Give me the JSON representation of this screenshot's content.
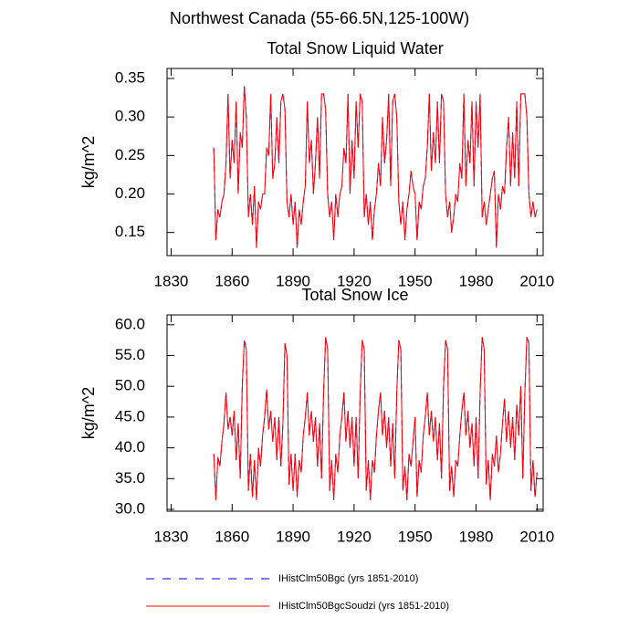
{
  "supertitle": "Northwest Canada (55-66.5N,125-100W)",
  "chart_data": [
    {
      "type": "line",
      "title": "Total Snow Liquid Water",
      "ylabel": "kg/m^2",
      "x": [
        1851,
        1852,
        1853,
        1854,
        1855,
        1856,
        1857,
        1858,
        1859,
        1860,
        1861,
        1862,
        1863,
        1864,
        1865,
        1866,
        1867,
        1868,
        1869,
        1870,
        1871,
        1872,
        1873,
        1874,
        1875,
        1876,
        1877,
        1878,
        1879,
        1880,
        1881,
        1882,
        1883,
        1884,
        1885,
        1886,
        1887,
        1888,
        1889,
        1890,
        1891,
        1892,
        1893,
        1894,
        1895,
        1896,
        1897,
        1898,
        1899,
        1900,
        1901,
        1902,
        1903,
        1904,
        1905,
        1906,
        1907,
        1908,
        1909,
        1910,
        1911,
        1912,
        1913,
        1914,
        1915,
        1916,
        1917,
        1918,
        1919,
        1920,
        1921,
        1922,
        1923,
        1924,
        1925,
        1926,
        1927,
        1928,
        1929,
        1930,
        1931,
        1932,
        1933,
        1934,
        1935,
        1936,
        1937,
        1938,
        1939,
        1940,
        1941,
        1942,
        1943,
        1944,
        1945,
        1946,
        1947,
        1948,
        1949,
        1950,
        1951,
        1952,
        1953,
        1954,
        1955,
        1956,
        1957,
        1958,
        1959,
        1960,
        1961,
        1962,
        1963,
        1964,
        1965,
        1966,
        1967,
        1968,
        1969,
        1970,
        1971,
        1972,
        1973,
        1974,
        1975,
        1976,
        1977,
        1978,
        1979,
        1980,
        1981,
        1982,
        1983,
        1984,
        1985,
        1986,
        1987,
        1988,
        1989,
        1990,
        1991,
        1992,
        1993,
        1994,
        1995,
        1996,
        1997,
        1998,
        1999,
        2000,
        2001,
        2002,
        2003,
        2004,
        2005,
        2006,
        2007,
        2008,
        2009,
        2010
      ],
      "series": [
        {
          "name": "IHistClm50Bgc (yrs 1851-2010)",
          "color": "#0000ff",
          "dashed": true,
          "values": [
            0.26,
            0.14,
            0.18,
            0.17,
            0.19,
            0.2,
            0.24,
            0.33,
            0.22,
            0.27,
            0.24,
            0.32,
            0.2,
            0.28,
            0.26,
            0.34,
            0.3,
            0.17,
            0.2,
            0.16,
            0.21,
            0.13,
            0.19,
            0.18,
            0.2,
            0.2,
            0.26,
            0.25,
            0.33,
            0.22,
            0.24,
            0.3,
            0.24,
            0.32,
            0.33,
            0.31,
            0.19,
            0.17,
            0.2,
            0.16,
            0.19,
            0.13,
            0.18,
            0.16,
            0.19,
            0.21,
            0.32,
            0.24,
            0.27,
            0.2,
            0.24,
            0.3,
            0.22,
            0.33,
            0.33,
            0.31,
            0.2,
            0.17,
            0.19,
            0.14,
            0.2,
            0.17,
            0.2,
            0.21,
            0.26,
            0.24,
            0.33,
            0.2,
            0.27,
            0.22,
            0.32,
            0.26,
            0.33,
            0.32,
            0.17,
            0.2,
            0.16,
            0.19,
            0.14,
            0.18,
            0.2,
            0.24,
            0.21,
            0.3,
            0.24,
            0.27,
            0.33,
            0.21,
            0.32,
            0.33,
            0.3,
            0.19,
            0.16,
            0.19,
            0.14,
            0.18,
            0.2,
            0.23,
            0.21,
            0.2,
            0.14,
            0.19,
            0.18,
            0.21,
            0.22,
            0.26,
            0.33,
            0.23,
            0.28,
            0.24,
            0.32,
            0.24,
            0.33,
            0.32,
            0.2,
            0.17,
            0.19,
            0.15,
            0.17,
            0.2,
            0.19,
            0.24,
            0.22,
            0.33,
            0.21,
            0.27,
            0.24,
            0.32,
            0.21,
            0.32,
            0.26,
            0.33,
            0.17,
            0.19,
            0.16,
            0.18,
            0.2,
            0.22,
            0.23,
            0.13,
            0.2,
            0.18,
            0.21,
            0.2,
            0.26,
            0.3,
            0.21,
            0.28,
            0.22,
            0.32,
            0.21,
            0.33,
            0.33,
            0.33,
            0.3,
            0.2,
            0.17,
            0.19,
            0.17,
            0.18
          ]
        },
        {
          "name": "IHistClm50BgcSoudzi (yrs 1851-2010)",
          "color": "#ff0000",
          "dashed": false,
          "values": [
            0.26,
            0.14,
            0.18,
            0.17,
            0.19,
            0.2,
            0.24,
            0.33,
            0.22,
            0.27,
            0.24,
            0.32,
            0.2,
            0.28,
            0.26,
            0.34,
            0.3,
            0.17,
            0.2,
            0.16,
            0.21,
            0.13,
            0.19,
            0.18,
            0.2,
            0.2,
            0.26,
            0.25,
            0.33,
            0.22,
            0.24,
            0.3,
            0.24,
            0.32,
            0.33,
            0.31,
            0.19,
            0.17,
            0.2,
            0.16,
            0.19,
            0.13,
            0.18,
            0.16,
            0.19,
            0.21,
            0.32,
            0.24,
            0.27,
            0.2,
            0.24,
            0.3,
            0.22,
            0.33,
            0.33,
            0.31,
            0.2,
            0.17,
            0.19,
            0.14,
            0.2,
            0.17,
            0.2,
            0.21,
            0.26,
            0.24,
            0.33,
            0.2,
            0.27,
            0.22,
            0.32,
            0.26,
            0.33,
            0.32,
            0.17,
            0.2,
            0.16,
            0.19,
            0.14,
            0.18,
            0.2,
            0.24,
            0.21,
            0.3,
            0.24,
            0.27,
            0.33,
            0.21,
            0.32,
            0.33,
            0.3,
            0.19,
            0.16,
            0.19,
            0.14,
            0.18,
            0.2,
            0.23,
            0.21,
            0.2,
            0.14,
            0.19,
            0.18,
            0.21,
            0.22,
            0.26,
            0.33,
            0.23,
            0.28,
            0.24,
            0.32,
            0.24,
            0.33,
            0.32,
            0.2,
            0.17,
            0.19,
            0.15,
            0.17,
            0.2,
            0.19,
            0.24,
            0.22,
            0.33,
            0.21,
            0.27,
            0.24,
            0.32,
            0.21,
            0.32,
            0.26,
            0.33,
            0.17,
            0.19,
            0.16,
            0.18,
            0.2,
            0.22,
            0.23,
            0.13,
            0.2,
            0.18,
            0.21,
            0.2,
            0.26,
            0.3,
            0.21,
            0.28,
            0.22,
            0.32,
            0.21,
            0.33,
            0.33,
            0.33,
            0.3,
            0.2,
            0.17,
            0.19,
            0.17,
            0.18
          ]
        }
      ],
      "xlim": [
        1828,
        2013
      ],
      "xticks": [
        1830,
        1860,
        1890,
        1920,
        1950,
        1980,
        2010
      ],
      "ylim": [
        0.12,
        0.363
      ],
      "yticks": [
        0.15,
        {
          "value": 0.2,
          "label": "0.20"
        },
        0.25,
        {
          "value": 0.3,
          "label": "0.30"
        },
        0.35
      ]
    },
    {
      "type": "line",
      "title": "Total Snow Ice",
      "ylabel": "kg/m^2",
      "x": [
        1851,
        1852,
        1853,
        1854,
        1855,
        1856,
        1857,
        1858,
        1859,
        1860,
        1861,
        1862,
        1863,
        1864,
        1865,
        1866,
        1867,
        1868,
        1869,
        1870,
        1871,
        1872,
        1873,
        1874,
        1875,
        1876,
        1877,
        1878,
        1879,
        1880,
        1881,
        1882,
        1883,
        1884,
        1885,
        1886,
        1887,
        1888,
        1889,
        1890,
        1891,
        1892,
        1893,
        1894,
        1895,
        1896,
        1897,
        1898,
        1899,
        1900,
        1901,
        1902,
        1903,
        1904,
        1905,
        1906,
        1907,
        1908,
        1909,
        1910,
        1911,
        1912,
        1913,
        1914,
        1915,
        1916,
        1917,
        1918,
        1919,
        1920,
        1921,
        1922,
        1923,
        1924,
        1925,
        1926,
        1927,
        1928,
        1929,
        1930,
        1931,
        1932,
        1933,
        1934,
        1935,
        1936,
        1937,
        1938,
        1939,
        1940,
        1941,
        1942,
        1943,
        1944,
        1945,
        1946,
        1947,
        1948,
        1949,
        1950,
        1951,
        1952,
        1953,
        1954,
        1955,
        1956,
        1957,
        1958,
        1959,
        1960,
        1961,
        1962,
        1963,
        1964,
        1965,
        1966,
        1967,
        1968,
        1969,
        1970,
        1971,
        1972,
        1973,
        1974,
        1975,
        1976,
        1977,
        1978,
        1979,
        1980,
        1981,
        1982,
        1983,
        1984,
        1985,
        1986,
        1987,
        1988,
        1989,
        1990,
        1991,
        1992,
        1993,
        1994,
        1995,
        1996,
        1997,
        1998,
        1999,
        2000,
        2001,
        2002,
        2003,
        2004,
        2005,
        2006,
        2007,
        2008,
        2009,
        2010
      ],
      "series": [
        {
          "color": "#0000ff",
          "dashed": true,
          "values": [
            39,
            31.5,
            38.5,
            37,
            41,
            44,
            49,
            43,
            45,
            42,
            46,
            38,
            44,
            35,
            50,
            57.5,
            56,
            33,
            39,
            32,
            38,
            31.5,
            40,
            37,
            42,
            45,
            49.5,
            43,
            46,
            41,
            45,
            38,
            45,
            37,
            44,
            57,
            55,
            34,
            39,
            33,
            39,
            32,
            38,
            36,
            42,
            45,
            49,
            42,
            46,
            41,
            45,
            37,
            44,
            35,
            49,
            58,
            56,
            33,
            38,
            31.5,
            39,
            36,
            42,
            45,
            49,
            41,
            46,
            40,
            45,
            37,
            45,
            35,
            49,
            57.5,
            56,
            33,
            38,
            31.5,
            38,
            36,
            42,
            46,
            49,
            42,
            46,
            40,
            45,
            37,
            44,
            35,
            49,
            57.5,
            56,
            33,
            37,
            31.5,
            39,
            37,
            41,
            45,
            32,
            38,
            36,
            42,
            45,
            49,
            42,
            46,
            41,
            45,
            38,
            44,
            35,
            50,
            57.5,
            56,
            33,
            37,
            32,
            38,
            37,
            42,
            46,
            49,
            42,
            46,
            40,
            44,
            37,
            45,
            35,
            49,
            58,
            56,
            34,
            38,
            31.5,
            39,
            37,
            42,
            36,
            39,
            44,
            48,
            41,
            46,
            40,
            45,
            38,
            47,
            42,
            50,
            35,
            49,
            58,
            57,
            33,
            38,
            32,
            36
          ]
        },
        {
          "color": "#ff0000",
          "dashed": false,
          "values": [
            39,
            31.5,
            38.5,
            37,
            41,
            44,
            49,
            43,
            45,
            42,
            46,
            38,
            44,
            35,
            50,
            57.5,
            56,
            33,
            39,
            32,
            38,
            31.5,
            40,
            37,
            42,
            45,
            49.5,
            43,
            46,
            41,
            45,
            38,
            45,
            37,
            44,
            57,
            55,
            34,
            39,
            33,
            39,
            32,
            38,
            36,
            42,
            45,
            49,
            42,
            46,
            41,
            45,
            37,
            44,
            35,
            49,
            58,
            56,
            33,
            38,
            31.5,
            39,
            36,
            42,
            45,
            49,
            41,
            46,
            40,
            45,
            37,
            45,
            35,
            49,
            57.5,
            56,
            33,
            38,
            31.5,
            38,
            36,
            42,
            46,
            49,
            42,
            46,
            40,
            45,
            37,
            44,
            35,
            49,
            57.5,
            56,
            33,
            37,
            31.5,
            39,
            37,
            41,
            45,
            32,
            38,
            36,
            42,
            45,
            49,
            42,
            46,
            41,
            45,
            38,
            44,
            35,
            50,
            57.5,
            56,
            33,
            37,
            32,
            38,
            37,
            42,
            46,
            49,
            42,
            46,
            40,
            44,
            37,
            45,
            35,
            49,
            58,
            56,
            34,
            38,
            31.5,
            39,
            37,
            42,
            36,
            39,
            44,
            48,
            41,
            46,
            40,
            45,
            38,
            47,
            42,
            50,
            35,
            49,
            58,
            57,
            33,
            38,
            32,
            36
          ]
        }
      ],
      "xlim": [
        1828,
        2013
      ],
      "xticks": [
        1830,
        1860,
        1890,
        1920,
        1950,
        1980,
        2010
      ],
      "ylim": [
        29.7,
        61.6
      ],
      "yticks": [
        {
          "value": 30,
          "label": "30.0"
        },
        {
          "value": 35,
          "label": "35.0"
        },
        {
          "value": 40,
          "label": "40.0"
        },
        {
          "value": 45,
          "label": "45.0"
        },
        {
          "value": 50,
          "label": "50.0"
        },
        {
          "value": 55,
          "label": "55.0"
        },
        {
          "value": 60,
          "label": "60.0"
        }
      ]
    }
  ]
}
